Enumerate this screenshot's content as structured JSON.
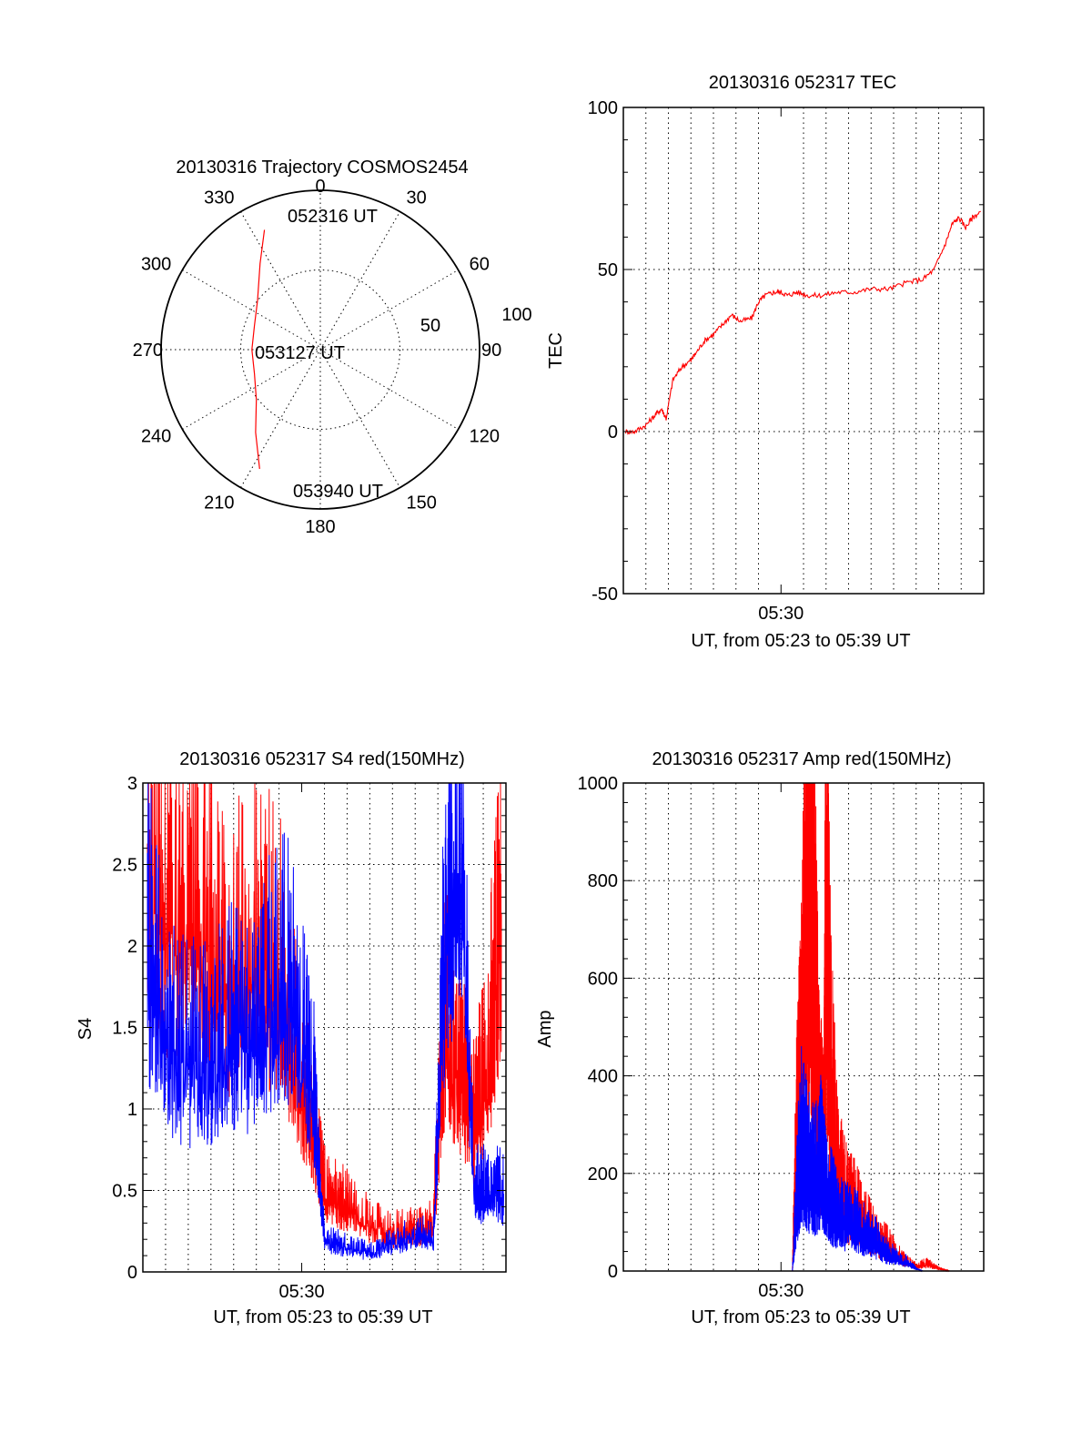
{
  "colors": {
    "red": "#ff0000",
    "blue": "#0000ff",
    "axis": "#000000"
  },
  "chart_data": [
    {
      "type": "polar",
      "title": "20130316 Trajectory COSMOS2454",
      "angle_labels": [
        "0",
        "30",
        "60",
        "90",
        "120",
        "150",
        "180",
        "210",
        "240",
        "270",
        "300",
        "330"
      ],
      "radial_labels": [
        "50",
        "100"
      ],
      "rlim": [
        0,
        100
      ],
      "track_annotations": [
        "052316 UT",
        "053127 UT",
        "053940 UT"
      ],
      "series": [
        {
          "name": "trajectory",
          "color": "red",
          "azimuth_deg": [
            335,
            325,
            308,
            290,
            270,
            250,
            232,
            218,
            207
          ],
          "radius": [
            83,
            66,
            50,
            44,
            43,
            44,
            51,
            66,
            84
          ]
        }
      ]
    },
    {
      "type": "line",
      "title": "20130316 052317 TEC",
      "xlabel": "UT, from 05:23 to 05:39 UT",
      "ylabel": "TEC",
      "xlim_minutes": [
        0,
        16
      ],
      "ylim": [
        -50,
        100
      ],
      "yticks": [
        "-50",
        "0",
        "50",
        "100"
      ],
      "xticks": [
        {
          "label": "05:30",
          "minute": 7
        }
      ],
      "grid": true,
      "series": [
        {
          "name": "TEC",
          "color": "red",
          "x_min": [
            0.1,
            0.5,
            1.0,
            1.4,
            1.7,
            1.9,
            2.2,
            2.6,
            3.0,
            3.2,
            3.6,
            4.0,
            4.4,
            4.8,
            5.2,
            5.7,
            6.0,
            6.3,
            6.7,
            7.0,
            7.3,
            7.7,
            8.2,
            8.8,
            9.5,
            10.2,
            11.0,
            11.8,
            12.6,
            13.3,
            13.8,
            14.3,
            14.6,
            14.9,
            15.2,
            15.5,
            15.9
          ],
          "y": [
            0,
            0,
            2,
            5,
            7,
            4,
            16,
            20,
            22,
            24,
            28,
            30,
            33,
            36,
            34,
            35,
            40,
            42,
            43,
            43,
            42,
            43,
            42,
            42,
            43,
            43,
            44,
            44,
            46,
            47,
            50,
            58,
            64,
            66,
            63,
            66,
            68
          ]
        }
      ]
    },
    {
      "type": "line",
      "title": "20130316 052317 S4 red(150MHz)",
      "xlabel": "UT, from 05:23 to 05:39 UT",
      "ylabel": "S4",
      "xlim_minutes": [
        0,
        16
      ],
      "ylim": [
        0,
        3
      ],
      "yticks": [
        "0",
        "0.5",
        "1",
        "1.5",
        "2",
        "2.5",
        "3"
      ],
      "xticks": [
        {
          "label": "05:30",
          "minute": 7
        }
      ],
      "grid": true,
      "series": [
        {
          "name": "S4 red",
          "color": "red",
          "x_min": [
            0.2,
            1.0,
            2.0,
            3.0,
            4.0,
            5.0,
            6.0,
            7.0,
            7.5,
            8.0,
            8.5,
            9.0,
            10.0,
            11.0,
            12.0,
            12.8,
            13.3,
            14.0,
            14.6,
            15.2,
            15.8
          ],
          "y": [
            2.5,
            2.2,
            2.0,
            2.0,
            1.8,
            2.0,
            1.8,
            1.2,
            0.9,
            0.5,
            0.45,
            0.4,
            0.3,
            0.25,
            0.25,
            0.3,
            1.5,
            1.2,
            0.9,
            1.3,
            2.2
          ]
        },
        {
          "name": "S4 blue",
          "color": "blue",
          "x_min": [
            0.2,
            1.0,
            2.0,
            3.0,
            4.0,
            5.0,
            6.0,
            7.0,
            7.6,
            8.0,
            9.0,
            10.0,
            11.0,
            12.0,
            12.8,
            13.3,
            14.0,
            14.6,
            15.2,
            15.9
          ],
          "y": [
            2.0,
            1.4,
            1.3,
            1.3,
            1.5,
            1.4,
            1.8,
            1.5,
            1.0,
            0.2,
            0.15,
            0.12,
            0.18,
            0.22,
            0.22,
            2.0,
            2.5,
            0.5,
            0.5,
            0.48
          ]
        }
      ]
    },
    {
      "type": "line",
      "title": "20130316 052317 Amp red(150MHz)",
      "xlabel": "UT, from 05:23 to 05:39 UT",
      "ylabel": "Amp",
      "xlim_minutes": [
        0,
        16
      ],
      "ylim": [
        0,
        1000
      ],
      "yticks": [
        "0",
        "200",
        "400",
        "600",
        "800",
        "1000"
      ],
      "xticks": [
        {
          "label": "05:30",
          "minute": 7
        }
      ],
      "grid": true,
      "series": [
        {
          "name": "Amp red",
          "color": "red",
          "x_min": [
            0,
            7.5,
            7.7,
            7.9,
            8.1,
            8.3,
            8.4,
            8.5,
            8.7,
            8.9,
            9.0,
            9.2,
            9.5,
            9.8,
            10.2,
            10.6,
            11.0,
            11.5,
            12.0,
            12.5,
            13.0,
            13.5,
            14.0,
            14.5,
            16
          ],
          "y": [
            0,
            0,
            300,
            420,
            640,
            850,
            580,
            650,
            300,
            250,
            760,
            400,
            200,
            150,
            130,
            100,
            80,
            60,
            40,
            20,
            10,
            15,
            5,
            0,
            0
          ]
        },
        {
          "name": "Amp blue",
          "color": "blue",
          "x_min": [
            0,
            7.5,
            7.7,
            7.9,
            8.2,
            8.5,
            8.8,
            9.0,
            9.3,
            9.6,
            10.0,
            10.4,
            10.8,
            11.2,
            11.6,
            12.0,
            12.5,
            13.0,
            13.3,
            16
          ],
          "y": [
            0,
            0,
            150,
            250,
            200,
            180,
            220,
            150,
            130,
            110,
            100,
            90,
            70,
            60,
            40,
            30,
            20,
            5,
            0,
            0
          ]
        }
      ]
    }
  ]
}
